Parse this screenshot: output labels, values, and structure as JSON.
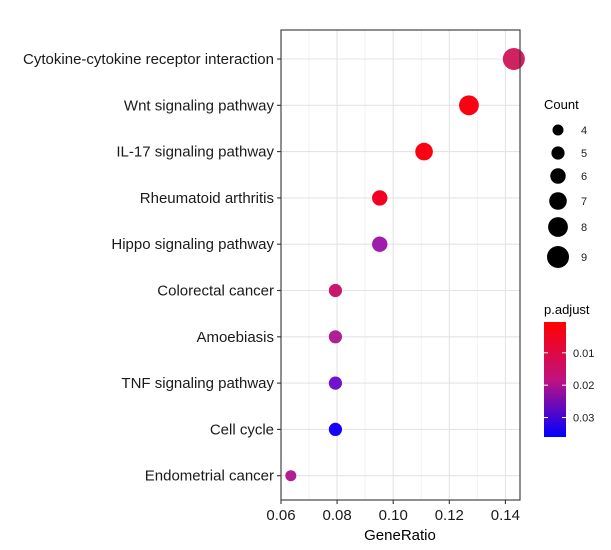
{
  "chart_data": {
    "type": "scatter",
    "xlabel": "GeneRatio",
    "ylabel": "",
    "xlim": [
      0.06,
      0.1452
    ],
    "xticks": [
      0.06,
      0.08,
      0.1,
      0.12,
      0.14
    ],
    "xtick_labels": [
      "0.06",
      "0.08",
      "0.10",
      "0.12",
      "0.14"
    ],
    "categories": [
      "Cytokine-cytokine receptor interaction",
      "Wnt signaling pathway",
      "IL-17 signaling pathway",
      "Rheumatoid arthritis",
      "Hippo signaling pathway",
      "Colorectal cancer",
      "Amoebiasis",
      "TNF signaling pathway",
      "Cell cycle",
      "Endometrial cancer"
    ],
    "points": [
      {
        "term": "Cytokine-cytokine receptor interaction",
        "gene_ratio": 0.143,
        "count": 9,
        "p_adjust": 0.014,
        "color": "#D1215F"
      },
      {
        "term": "Wnt signaling pathway",
        "gene_ratio": 0.127,
        "count": 8,
        "p_adjust": 0.0012,
        "color": "#FA0212"
      },
      {
        "term": "IL-17 signaling pathway",
        "gene_ratio": 0.111,
        "count": 7,
        "p_adjust": 0.0012,
        "color": "#FA0212"
      },
      {
        "term": "Rheumatoid arthritis",
        "gene_ratio": 0.0952,
        "count": 6,
        "p_adjust": 0.0025,
        "color": "#F40024"
      },
      {
        "term": "Hippo signaling pathway",
        "gene_ratio": 0.0952,
        "count": 6,
        "p_adjust": 0.024,
        "color": "#9E1DAA"
      },
      {
        "term": "Colorectal cancer",
        "gene_ratio": 0.0794,
        "count": 5,
        "p_adjust": 0.016,
        "color": "#C9176E"
      },
      {
        "term": "Amoebiasis",
        "gene_ratio": 0.0794,
        "count": 5,
        "p_adjust": 0.021,
        "color": "#AF2094"
      },
      {
        "term": "TNF signaling pathway",
        "gene_ratio": 0.0794,
        "count": 5,
        "p_adjust": 0.029,
        "color": "#7113CE"
      },
      {
        "term": "Cell cycle",
        "gene_ratio": 0.0794,
        "count": 5,
        "p_adjust": 0.035,
        "color": "#1600FE"
      },
      {
        "term": "Endometrial cancer",
        "gene_ratio": 0.0635,
        "count": 4,
        "p_adjust": 0.021,
        "color": "#AF2094"
      }
    ],
    "size_legend": {
      "title": "Count",
      "values": [
        4,
        5,
        6,
        7,
        8,
        9
      ],
      "labels": [
        "4",
        "5",
        "6",
        "7",
        "8",
        "9"
      ]
    },
    "color_legend": {
      "title": "p.adjust",
      "range": [
        0.0005,
        0.036
      ],
      "tick_values": [
        0.01,
        0.02,
        0.03
      ],
      "tick_labels": [
        "0.01",
        "0.02",
        "0.03"
      ],
      "low_color": "#FF0000",
      "high_color": "#0000FF"
    },
    "grid": true,
    "legend_position": "right"
  }
}
